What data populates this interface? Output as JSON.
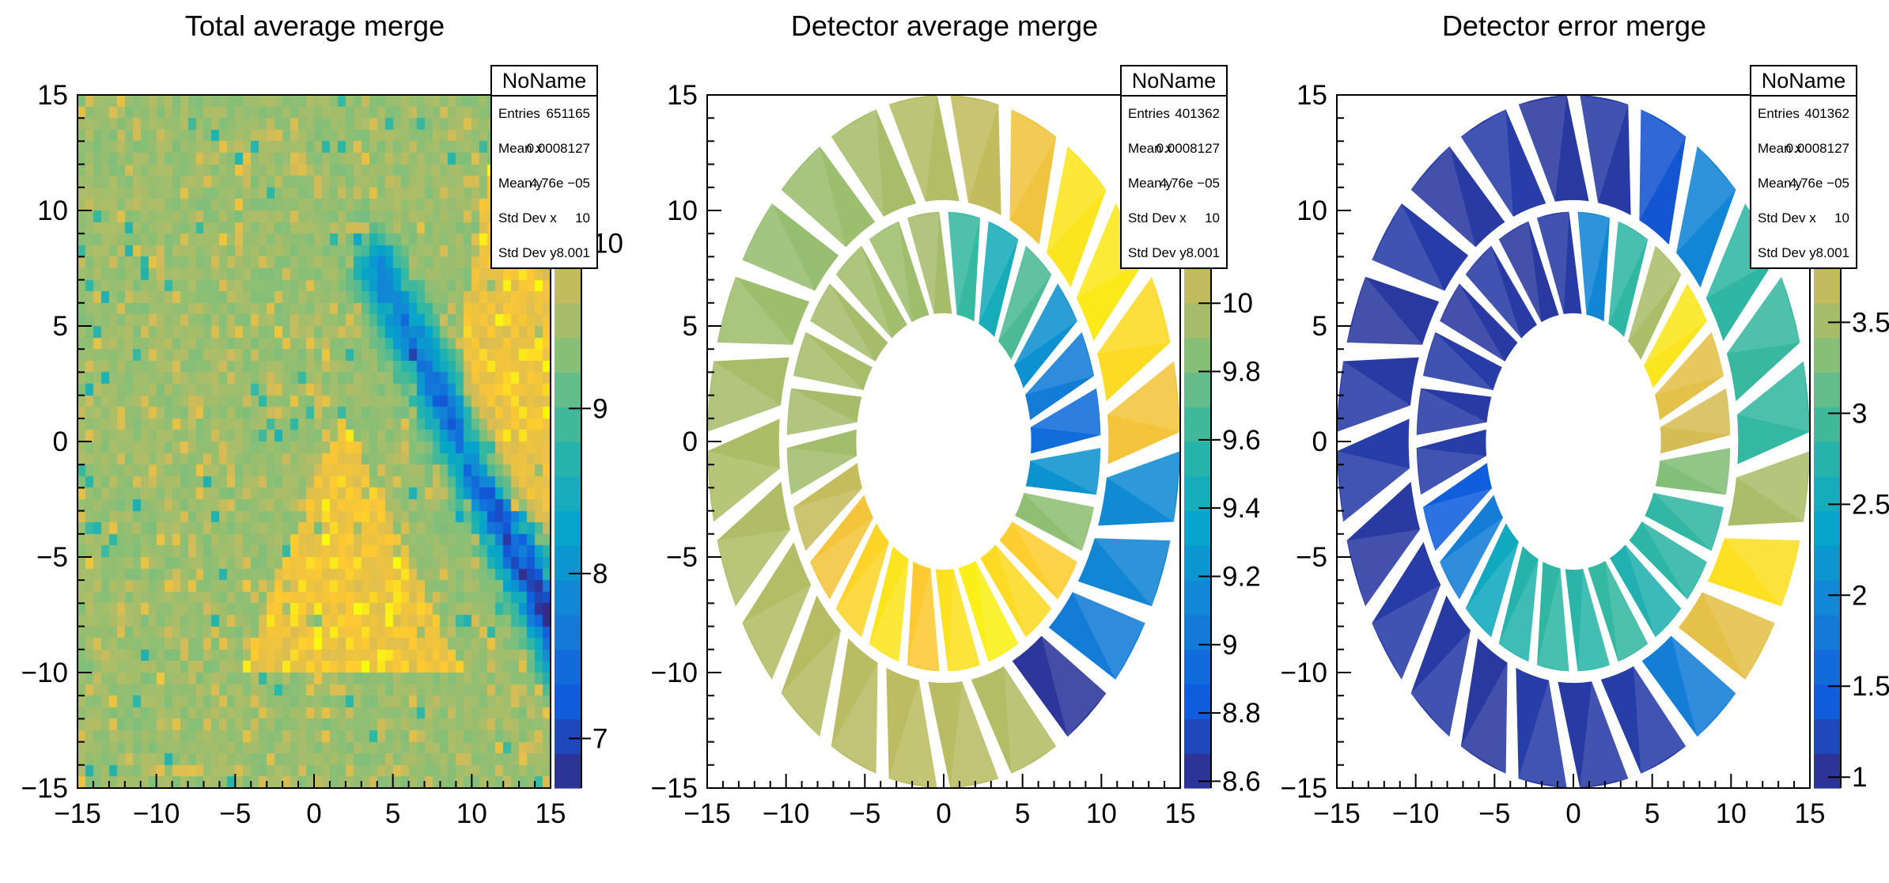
{
  "app": {
    "window_title": "ROOT canvas",
    "background": "#ffffff"
  },
  "palette": {
    "name": "root-kBird",
    "stops": [
      "#352a87",
      "#0f5cdd",
      "#1481d6",
      "#06a4ca",
      "#2eb7a4",
      "#87bf77",
      "#d1bb59",
      "#fec832",
      "#f9fb0e"
    ]
  },
  "chart_data": [
    {
      "type": "heatmap",
      "title": "Total average merge",
      "xlabel": "",
      "ylabel": "",
      "x_range": [
        -15,
        15
      ],
      "y_range": [
        -15,
        15
      ],
      "x_ticks": [
        -15,
        -10,
        -5,
        0,
        5,
        10,
        15
      ],
      "y_ticks": [
        -15,
        -10,
        -5,
        0,
        5,
        10,
        15
      ],
      "minor_tick_step": 1,
      "bins": [
        60,
        60
      ],
      "z_range": [
        6.7,
        10.9
      ],
      "colorbar_tick_labels": [
        "7",
        "8",
        "9",
        "10"
      ],
      "background_mean": 9.45,
      "noise_sigma": 0.17,
      "seed": 1234,
      "features": {
        "blue_band": {
          "from": [
            4.0,
            7.5
          ],
          "to": [
            15.5,
            -8.5
          ],
          "half_width": 1.35,
          "depth_start": 1.6,
          "depth_end": 2.6
        },
        "warm_triangle": {
          "points": [
            [
              -4.5,
              -9.8
            ],
            [
              9.3,
              -9.8
            ],
            [
              1.8,
              1.2
            ]
          ],
          "boost": 0.75
        },
        "warm_right": {
          "points": [
            [
              9.8,
              -1.5
            ],
            [
              15.2,
              -4
            ],
            [
              15.2,
              13
            ],
            [
              11.5,
              13
            ],
            [
              9.3,
              5
            ]
          ],
          "boost": 0.7
        },
        "speckle_warm": {
          "probability": 0.13,
          "boost": 0.45
        },
        "speckle_cool": {
          "probability": 0.025,
          "drop": 0.7
        }
      },
      "stats": {
        "title": "NoName",
        "rows": [
          {
            "label": "Entries",
            "value": "651165"
          },
          {
            "label": "Mean x",
            "value": "0.0008127"
          },
          {
            "label": "Mean y",
            "value": "4.76e −05"
          },
          {
            "label": "Std Dev x",
            "value": "10"
          },
          {
            "label": "Std Dev y",
            "value": "8.001"
          }
        ]
      }
    },
    {
      "type": "detector-wedge-polar",
      "title": "Detector average merge",
      "x_range": [
        -15,
        15
      ],
      "y_range": [
        -15,
        15
      ],
      "x_ticks": [
        -15,
        -10,
        -5,
        0,
        5,
        10,
        15
      ],
      "y_ticks": [
        -15,
        -10,
        -5,
        0,
        5,
        10,
        15
      ],
      "minor_tick_step": 1,
      "z_range": [
        8.58,
        10.61
      ],
      "colorbar_tick_labels": [
        "8.6",
        "8.8",
        "9",
        "9.2",
        "9.4",
        "9.6",
        "9.8",
        "10"
      ],
      "geometry": {
        "segments_per_ring": 24,
        "twist_deg": 7,
        "gap_deg": 3.2,
        "outer_ring_radii": [
          10.45,
          15.0
        ],
        "inner_ring_radii": [
          5.55,
          9.95
        ]
      },
      "outer_ring_values": [
        10.3,
        10.45,
        10.52,
        10.5,
        10.28,
        10.05,
        10.0,
        9.96,
        9.92,
        9.9,
        9.93,
        9.96,
        9.98,
        9.99,
        10.0,
        10.01,
        10.02,
        10.03,
        10.02,
        10.0,
        8.64,
        9.05,
        9.12,
        9.16
      ],
      "inner_ring_values": [
        8.95,
        9.05,
        9.2,
        9.68,
        9.45,
        9.62,
        9.95,
        9.93,
        9.94,
        9.95,
        9.96,
        9.95,
        9.94,
        10.06,
        10.3,
        10.42,
        10.5,
        10.36,
        10.48,
        10.55,
        10.45,
        10.38,
        9.88,
        9.22
      ],
      "stats": {
        "title": "NoName",
        "rows": [
          {
            "label": "Entries",
            "value": "401362"
          },
          {
            "label": "Mean x",
            "value": "0.0008127"
          },
          {
            "label": "Mean y",
            "value": "4.76e −05"
          },
          {
            "label": "Std Dev x",
            "value": "10"
          },
          {
            "label": "Std Dev y",
            "value": "8.001"
          }
        ]
      }
    },
    {
      "type": "detector-wedge-polar",
      "title": "Detector error merge",
      "x_range": [
        -15,
        15
      ],
      "y_range": [
        -15,
        15
      ],
      "x_ticks": [
        -15,
        -10,
        -5,
        0,
        5,
        10,
        15
      ],
      "y_ticks": [
        -15,
        -10,
        -5,
        0,
        5,
        10,
        15
      ],
      "minor_tick_step": 1,
      "z_range": [
        0.94,
        4.75
      ],
      "colorbar_tick_labels": [
        "1",
        "1.5",
        "2",
        "2.5",
        "3",
        "3.5"
      ],
      "geometry": {
        "segments_per_ring": 24,
        "twist_deg": 7,
        "gap_deg": 3.2,
        "outer_ring_radii": [
          10.45,
          15.0
        ],
        "inner_ring_radii": [
          5.55,
          9.95
        ]
      },
      "outer_ring_values": [
        2.88,
        2.9,
        2.85,
        1.95,
        1.35,
        1.1,
        1.08,
        1.12,
        1.09,
        1.11,
        1.08,
        1.1,
        1.12,
        1.09,
        1.11,
        1.1,
        1.08,
        1.12,
        1.1,
        1.12,
        1.85,
        4.0,
        4.5,
        3.55
      ],
      "inner_ring_values": [
        3.85,
        4.0,
        4.55,
        3.55,
        2.85,
        1.95,
        1.1,
        1.08,
        1.1,
        1.09,
        1.11,
        1.1,
        1.12,
        1.45,
        1.85,
        2.5,
        2.75,
        2.85,
        2.8,
        2.88,
        2.7,
        2.82,
        2.86,
        3.3
      ],
      "stats": {
        "title": "NoName",
        "rows": [
          {
            "label": "Entries",
            "value": "401362"
          },
          {
            "label": "Mean x",
            "value": "0.0008127"
          },
          {
            "label": "Mean y",
            "value": "4.76e −05"
          },
          {
            "label": "Std Dev x",
            "value": "10"
          },
          {
            "label": "Std Dev y",
            "value": "8.001"
          }
        ]
      }
    }
  ]
}
